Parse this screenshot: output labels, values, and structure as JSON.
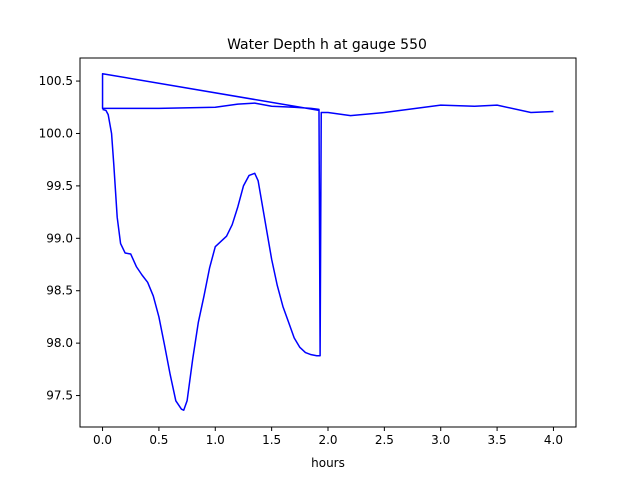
{
  "chart_data": {
    "type": "line",
    "title": "Water Depth h at gauge 550",
    "xlabel": "hours",
    "ylabel": "",
    "xlim": [
      -0.2,
      4.2
    ],
    "ylim": [
      97.2,
      100.72
    ],
    "grid": false,
    "xticks": [
      0.0,
      0.5,
      1.0,
      1.5,
      2.0,
      2.5,
      3.0,
      3.5,
      4.0
    ],
    "xtick_labels": [
      "0.0",
      "0.5",
      "1.0",
      "1.5",
      "2.0",
      "2.5",
      "3.0",
      "3.5",
      "4.0"
    ],
    "yticks": [
      97.5,
      98.0,
      98.5,
      99.0,
      99.5,
      100.0,
      100.5
    ],
    "ytick_labels": [
      "97.5",
      "98.0",
      "98.5",
      "99.0",
      "99.5",
      "100.0",
      "100.5"
    ],
    "series": [
      {
        "color": "#0000ff",
        "x": [
          0.0,
          0.0,
          1.92,
          0.0,
          0.0,
          0.5,
          1.0,
          1.2,
          1.35,
          1.5,
          1.7,
          1.85,
          1.92,
          1.93,
          1.94,
          2.0,
          2.2,
          2.5,
          3.0,
          3.3,
          3.5,
          3.8,
          4.0
        ],
        "y": [
          100.24,
          100.57,
          100.22,
          100.57,
          100.24,
          100.24,
          100.25,
          100.28,
          100.29,
          100.26,
          100.25,
          100.24,
          100.23,
          97.88,
          100.2,
          100.2,
          100.17,
          100.2,
          100.27,
          100.26,
          100.27,
          100.2,
          100.21
        ]
      },
      {
        "color": "#0000ff",
        "x": [
          0.0,
          0.03,
          0.05,
          0.08,
          0.1,
          0.13,
          0.16,
          0.2,
          0.25,
          0.3,
          0.35,
          0.4,
          0.45,
          0.5,
          0.55,
          0.6,
          0.65,
          0.7,
          0.72,
          0.75,
          0.8,
          0.85,
          0.9,
          0.95,
          1.0,
          1.05,
          1.1,
          1.15,
          1.2,
          1.25,
          1.3,
          1.35,
          1.38,
          1.42,
          1.46,
          1.5,
          1.55,
          1.6,
          1.65,
          1.7,
          1.75,
          1.8,
          1.85,
          1.9,
          1.93
        ],
        "y": [
          100.23,
          100.22,
          100.18,
          100.0,
          99.7,
          99.2,
          98.95,
          98.86,
          98.85,
          98.73,
          98.65,
          98.58,
          98.45,
          98.25,
          97.98,
          97.7,
          97.45,
          97.37,
          97.36,
          97.45,
          97.85,
          98.2,
          98.45,
          98.72,
          98.92,
          98.97,
          99.02,
          99.13,
          99.3,
          99.5,
          99.6,
          99.62,
          99.55,
          99.3,
          99.05,
          98.8,
          98.55,
          98.35,
          98.2,
          98.05,
          97.96,
          97.91,
          97.89,
          97.88,
          97.88
        ]
      }
    ]
  }
}
